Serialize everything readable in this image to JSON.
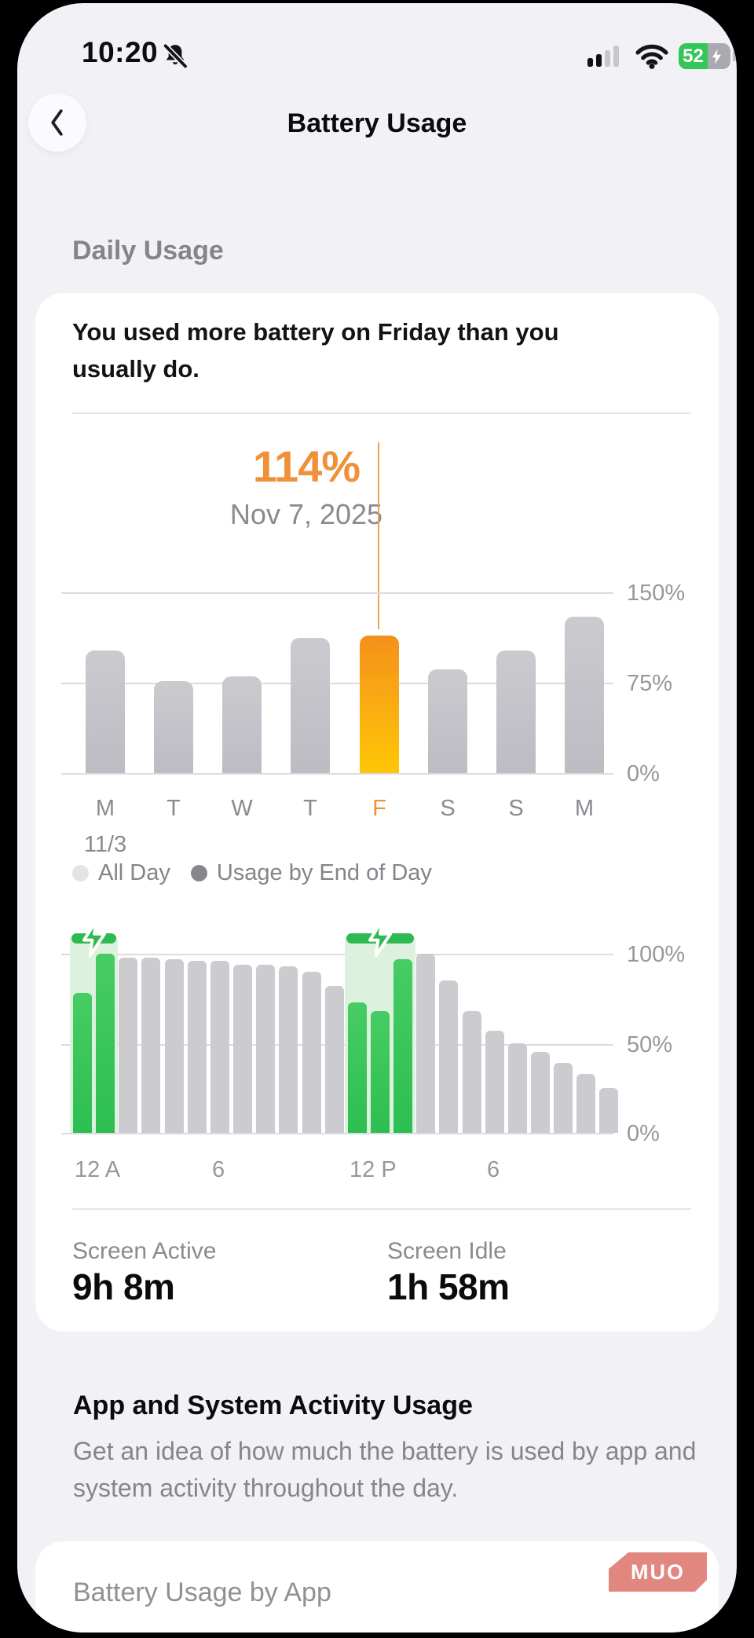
{
  "status_bar": {
    "time": "10:20",
    "battery_percent": "52"
  },
  "nav": {
    "title": "Battery Usage"
  },
  "sections": {
    "daily_usage": "Daily Usage",
    "app_activity_heading": "App and System Activity Usage",
    "app_activity_description": "Get an idea of how much the battery is used by app and system activity throughout the day.",
    "battery_by_app_label": "Battery Usage by App",
    "watermark": "MUO"
  },
  "insight_card": {
    "headline": "You used more battery on Friday than you usually do.",
    "selected_value": "114%",
    "selected_date": "Nov 7, 2025",
    "legend": [
      {
        "label": "All Day",
        "color": "#E3E3E8"
      },
      {
        "label": "Usage by End of Day",
        "color": "#86868C"
      }
    ],
    "screen_active_label": "Screen Active",
    "screen_active_value": "9h 8m",
    "screen_idle_label": "Screen Idle",
    "screen_idle_value": "1h 58m"
  },
  "chart_data": [
    {
      "type": "bar",
      "categories": [
        "M",
        "T",
        "W",
        "T",
        "F",
        "S",
        "S",
        "M"
      ],
      "start_date_label": "11/3",
      "values": [
        102,
        76,
        80,
        112,
        114,
        86,
        102,
        130
      ],
      "highlight_index": 4,
      "highlight_label": "114%",
      "highlight_date": "Nov 7, 2025",
      "ylim": [
        0,
        150
      ],
      "ytick_labels": [
        "150%",
        "75%",
        "0%"
      ],
      "bar_color": "#C4C4CA",
      "highlight_color": "#F7A211",
      "grid": true,
      "legend_position": "below"
    },
    {
      "type": "bar",
      "values": [
        78,
        100,
        98,
        98,
        97,
        96,
        96,
        94,
        94,
        93,
        90,
        82,
        73,
        68,
        97,
        100,
        85,
        68,
        57,
        50,
        45,
        39,
        33,
        25
      ],
      "charging_segments": [
        {
          "start": 0,
          "end": 1
        },
        {
          "start": 12,
          "end": 14
        }
      ],
      "xticks": [
        {
          "index": 0,
          "label": "12 A"
        },
        {
          "index": 6,
          "label": "6"
        },
        {
          "index": 12,
          "label": "12 P"
        },
        {
          "index": 18,
          "label": "6"
        }
      ],
      "ylim": [
        0,
        100
      ],
      "ytick_labels": [
        "100%",
        "50%",
        "0%"
      ],
      "bar_color": "#CBCBD0",
      "charging_color": "#2FBA51",
      "grid": true
    }
  ]
}
